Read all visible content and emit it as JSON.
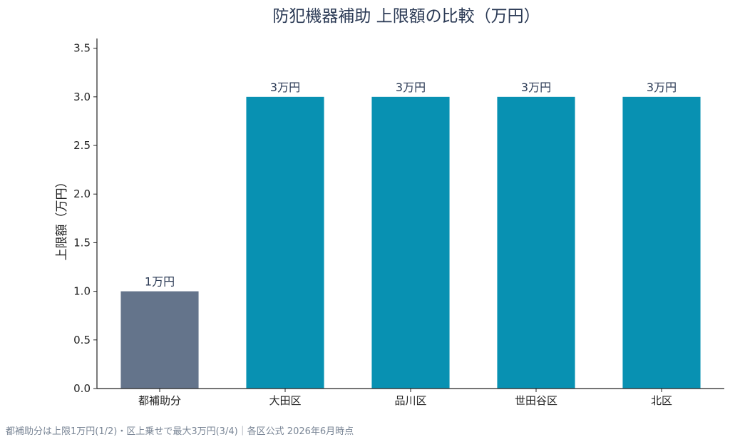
{
  "chart_data": {
    "type": "bar",
    "title": "防犯機器補助 上限額の比較（万円）",
    "xlabel": "",
    "ylabel": "上限額（万円）",
    "categories": [
      "都補助分",
      "大田区",
      "品川区",
      "世田谷区",
      "北区"
    ],
    "values": [
      1.0,
      3.0,
      3.0,
      3.0,
      3.0
    ],
    "data_labels": [
      "1万円",
      "3万円",
      "3万円",
      "3万円",
      "3万円"
    ],
    "colors": [
      "#64748b",
      "#0891b2",
      "#0891b2",
      "#0891b2",
      "#0891b2"
    ],
    "ylim": [
      0,
      3.6
    ],
    "yticks": [
      "0.0",
      "0.5",
      "1.0",
      "1.5",
      "2.0",
      "2.5",
      "3.0",
      "3.5"
    ],
    "grid": false,
    "legend": "none"
  },
  "footnote": "都補助分は上限1万円(1/2)・区上乗せで最大3万円(3/4)｜各区公式 2026年6月時点"
}
